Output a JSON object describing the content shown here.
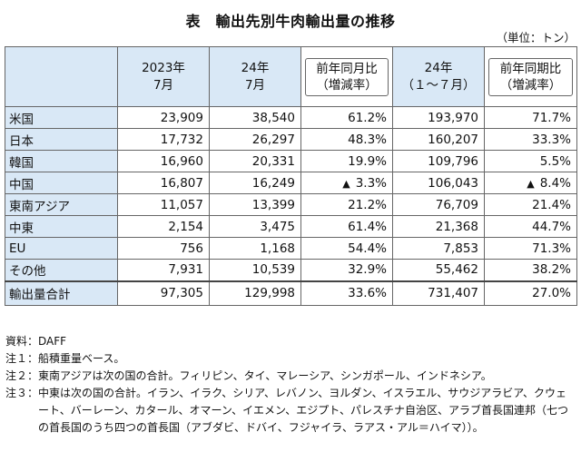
{
  "title": "表　輸出先別牛肉輸出量の推移",
  "unit": "（単位：トン）",
  "headers": {
    "c1_line1": "2023年",
    "c1_line2": "7月",
    "c2_line1": "24年",
    "c2_line2": "7月",
    "c3_line1": "前年同月比",
    "c3_line2": "（増減率）",
    "c4_line1": "24年",
    "c4_line2": "（１～７月）",
    "c5_line1": "前年同期比",
    "c5_line2": "（増減率）"
  },
  "rows": [
    {
      "label": "米国",
      "v2023": "23,909",
      "v2024": "38,540",
      "yoy_m": "61.2%",
      "ytd": "193,970",
      "yoy_p": "71.7%",
      "tri_m": "",
      "tri_p": ""
    },
    {
      "label": "日本",
      "v2023": "17,732",
      "v2024": "26,297",
      "yoy_m": "48.3%",
      "ytd": "160,207",
      "yoy_p": "33.3%",
      "tri_m": "",
      "tri_p": ""
    },
    {
      "label": "韓国",
      "v2023": "16,960",
      "v2024": "20,331",
      "yoy_m": "19.9%",
      "ytd": "109,796",
      "yoy_p": "5.5%",
      "tri_m": "",
      "tri_p": ""
    },
    {
      "label": "中国",
      "v2023": "16,807",
      "v2024": "16,249",
      "yoy_m": "3.3%",
      "ytd": "106,043",
      "yoy_p": "8.4%",
      "tri_m": "▲",
      "tri_p": "▲"
    },
    {
      "label": "東南アジア",
      "v2023": "11,057",
      "v2024": "13,399",
      "yoy_m": "21.2%",
      "ytd": "76,709",
      "yoy_p": "21.4%",
      "tri_m": "",
      "tri_p": ""
    },
    {
      "label": "中東",
      "v2023": "2,154",
      "v2024": "3,475",
      "yoy_m": "61.4%",
      "ytd": "21,368",
      "yoy_p": "44.7%",
      "tri_m": "",
      "tri_p": ""
    },
    {
      "label": "EU",
      "v2023": "756",
      "v2024": "1,168",
      "yoy_m": "54.4%",
      "ytd": "7,853",
      "yoy_p": "71.3%",
      "tri_m": "",
      "tri_p": ""
    },
    {
      "label": "その他",
      "v2023": "7,931",
      "v2024": "10,539",
      "yoy_m": "32.9%",
      "ytd": "55,462",
      "yoy_p": "38.2%",
      "tri_m": "",
      "tri_p": ""
    }
  ],
  "total": {
    "label": "輸出量合計",
    "v2023": "97,305",
    "v2024": "129,998",
    "yoy_m": "33.6%",
    "ytd": "731,407",
    "yoy_p": "27.0%"
  },
  "notes": [
    {
      "label": "資料：",
      "text": "DAFF"
    },
    {
      "label": "注１：",
      "text": "船積重量ベース。"
    },
    {
      "label": "注２：",
      "text": "東南アジアは次の国の合計。フィリピン、タイ、マレーシア、シンガポール、インドネシア。"
    },
    {
      "label": "注３：",
      "text": "中東は次の国の合計。イラン、イラク、シリア、レバノン、ヨルダン、イスラエル、サウジアラビア、クウェート、バーレーン、カタール、オマーン、イエメン、エジプト、パレスチナ自治区、アラブ首長国連邦（七つの首長国のうち四つの首長国（アブダビ、ドバイ、フジャイラ、ラアス・アル＝ハイマ））。"
    }
  ],
  "colors": {
    "header_bg": "#d9e8f6",
    "border": "#666666"
  }
}
